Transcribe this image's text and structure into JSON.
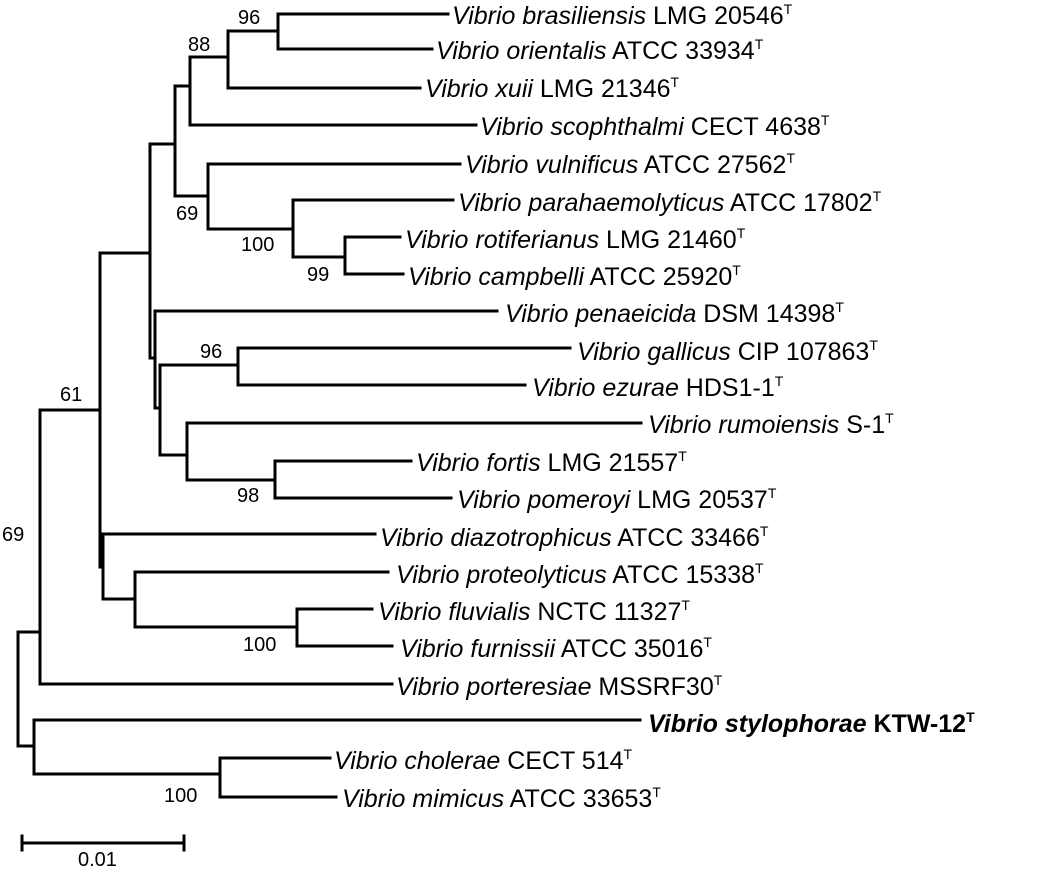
{
  "taxa": [
    {
      "genus": "Vibrio brasiliensis",
      "strain": "LMG 20546",
      "type": "T"
    },
    {
      "genus": "Vibrio orientalis",
      "strain": "ATCC 33934",
      "type": "T"
    },
    {
      "genus": "Vibrio xuii",
      "strain": "LMG 21346",
      "type": "T"
    },
    {
      "genus": "Vibrio scophthalmi",
      "strain": "CECT 4638",
      "type": "T"
    },
    {
      "genus": "Vibrio vulnificus",
      "strain": "ATCC 27562",
      "type": "T"
    },
    {
      "genus": "Vibrio parahaemolyticus",
      "strain": "ATCC 17802",
      "type": "T"
    },
    {
      "genus": "Vibrio rotiferianus",
      "strain": "LMG 21460",
      "type": "T"
    },
    {
      "genus": "Vibrio campbelli",
      "strain": "ATCC 25920",
      "type": "T"
    },
    {
      "genus": "Vibrio penaeicida",
      "strain": "DSM 14398",
      "type": "T"
    },
    {
      "genus": "Vibrio gallicus",
      "strain": "CIP 107863",
      "type": "T"
    },
    {
      "genus": "Vibrio ezurae",
      "strain": "HDS1-1",
      "type": "T"
    },
    {
      "genus": "Vibrio rumoiensis",
      "strain": "S-1",
      "type": "T"
    },
    {
      "genus": "Vibrio fortis",
      "strain": "LMG 21557",
      "type": "T"
    },
    {
      "genus": "Vibrio pomeroyi",
      "strain": "LMG 20537",
      "type": "T"
    },
    {
      "genus": "Vibrio diazotrophicus",
      "strain": "ATCC 33466",
      "type": "T"
    },
    {
      "genus": "Vibrio proteolyticus",
      "strain": "ATCC 15338",
      "type": "T"
    },
    {
      "genus": "Vibrio fluvialis",
      "strain": "NCTC 11327",
      "type": "T"
    },
    {
      "genus": "Vibrio furnissii",
      "strain": "ATCC 35016",
      "type": "T"
    },
    {
      "genus": "Vibrio porteresiae",
      "strain": "MSSRF30",
      "type": "T"
    },
    {
      "genus": "Vibrio stylophorae",
      "strain": "KTW-12",
      "type": "T",
      "bold": true
    },
    {
      "genus": "Vibrio cholerae",
      "strain": "CECT 514",
      "type": "T"
    },
    {
      "genus": "Vibrio mimicus",
      "strain": "ATCC 33653",
      "type": "T"
    }
  ],
  "bootstrap": [
    "96",
    "88",
    "69",
    "100",
    "99",
    "96",
    "98",
    "100",
    "61",
    "69",
    "100"
  ],
  "scale_bar": {
    "label": "0.01"
  }
}
